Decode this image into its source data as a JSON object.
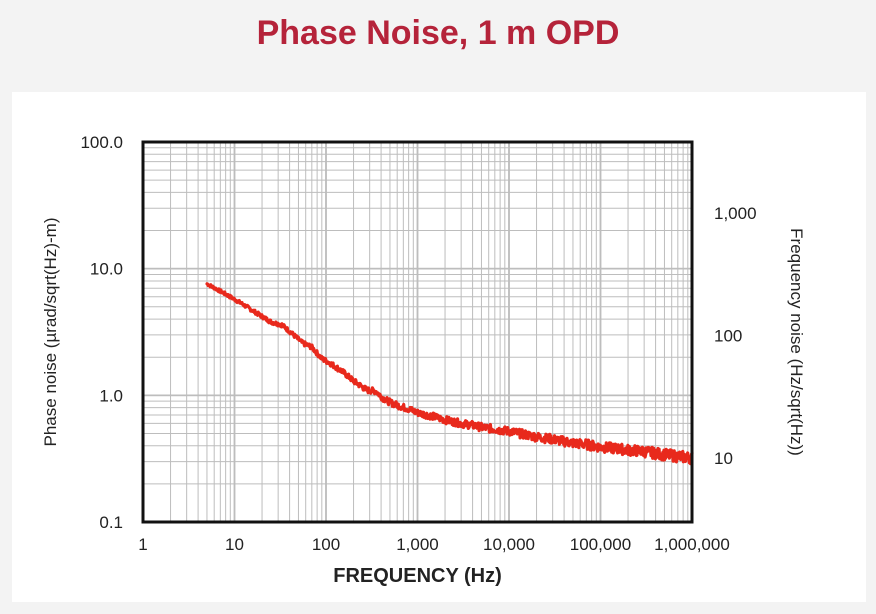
{
  "chart_data": {
    "type": "line",
    "title": "Phase Noise, 1 m OPD",
    "xlabel": "FREQUENCY (Hz)",
    "ylabel": "Phase noise (µrad/sqrt(Hz)-m)",
    "y2label": "Frequency noise (Hz/sqrt(Hz))",
    "xscale": "log",
    "yscale": "log",
    "xlim": [
      1,
      1000000
    ],
    "ylim": [
      0.1,
      100
    ],
    "y2lim": [
      3,
      3800
    ],
    "grid": true,
    "x_tick_labels": [
      "1",
      "10",
      "100",
      "1,000",
      "10,000",
      "100,000",
      "1,000,000"
    ],
    "y_tick_labels": [
      "0.1",
      "1.0",
      "10.0",
      "100.0"
    ],
    "y2_tick_labels": [
      "10",
      "100",
      "1,000"
    ],
    "series": [
      {
        "name": "Phase noise",
        "color": "#e8291c",
        "x": [
          5,
          8,
          12,
          18,
          25,
          33,
          40,
          55,
          70,
          90,
          110,
          150,
          200,
          280,
          350,
          420,
          500,
          650,
          800,
          1000,
          1500,
          2000,
          3000,
          4000,
          5000,
          7000,
          10000,
          15000,
          20000,
          30000,
          50000,
          70000,
          100000,
          150000,
          200000,
          300000,
          500000,
          700000,
          1000000
        ],
        "values": [
          7.6,
          6.3,
          5.3,
          4.4,
          3.8,
          3.6,
          3.2,
          2.6,
          2.4,
          1.95,
          1.8,
          1.55,
          1.3,
          1.1,
          1.08,
          0.95,
          0.88,
          0.82,
          0.78,
          0.73,
          0.68,
          0.64,
          0.6,
          0.58,
          0.56,
          0.54,
          0.52,
          0.49,
          0.47,
          0.45,
          0.42,
          0.41,
          0.39,
          0.38,
          0.37,
          0.36,
          0.34,
          0.33,
          0.32
        ]
      }
    ]
  }
}
